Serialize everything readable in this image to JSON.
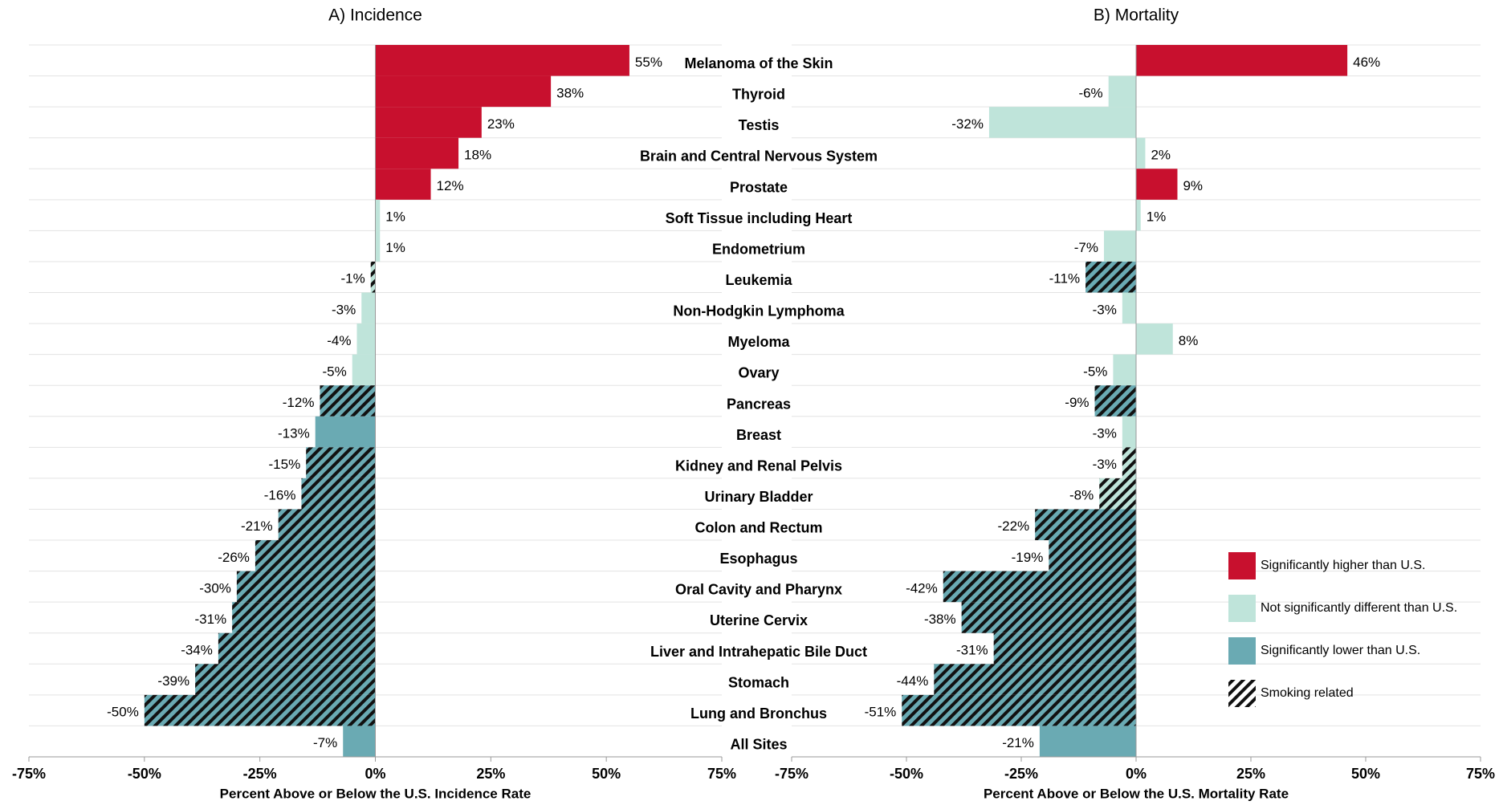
{
  "chart_data": {
    "type": "bar",
    "orientation": "horizontal",
    "categories": [
      "Melanoma of the Skin",
      "Thyroid",
      "Testis",
      "Brain and Central Nervous System",
      "Prostate",
      "Soft Tissue including Heart",
      "Endometrium",
      "Leukemia",
      "Non-Hodgkin Lymphoma",
      "Myeloma",
      "Ovary",
      "Pancreas",
      "Breast",
      "Kidney and Renal Pelvis",
      "Urinary Bladder",
      "Colon and Rectum",
      "Esophagus",
      "Oral Cavity and Pharynx",
      "Uterine Cervix",
      "Liver and Intrahepatic Bile Duct",
      "Stomach",
      "Lung and Bronchus",
      "All Sites"
    ],
    "legend": [
      {
        "name": "Significantly higher than U.S.",
        "color": "#c8102e"
      },
      {
        "name": "Not significantly different than U.S.",
        "color": "#bfe4da"
      },
      {
        "name": "Significantly lower than U.S.",
        "color": "#6aaab3"
      },
      {
        "name": "Smoking related",
        "pattern": "hatch"
      }
    ],
    "series": [
      {
        "name": "A) Incidence",
        "xlabel": "Percent Above or Below the U.S. Incidence Rate",
        "xlim": [
          -75,
          75
        ],
        "xticks": [
          {
            "value": -75,
            "label": "-75%"
          },
          {
            "value": -50,
            "label": "-50%"
          },
          {
            "value": -25,
            "label": "-25%"
          },
          {
            "value": 0,
            "label": "0%"
          },
          {
            "value": 25,
            "label": "25%"
          },
          {
            "value": 50,
            "label": "50%"
          },
          {
            "value": 75,
            "label": "75%"
          }
        ],
        "values": [
          55,
          38,
          23,
          18,
          12,
          1,
          1,
          -1,
          -3,
          -4,
          -5,
          -12,
          -13,
          -15,
          -16,
          -21,
          -26,
          -30,
          -31,
          -34,
          -39,
          -50,
          -7
        ],
        "value_labels": [
          "55%",
          "38%",
          "23%",
          "18%",
          "12%",
          "1%",
          "1%",
          "-1%",
          "-3%",
          "-4%",
          "-5%",
          "-12%",
          "-13%",
          "-15%",
          "-16%",
          "-21%",
          "-26%",
          "-30%",
          "-31%",
          "-34%",
          "-39%",
          "-50%",
          "-7%"
        ],
        "status": [
          0,
          0,
          0,
          0,
          0,
          1,
          1,
          1,
          1,
          1,
          1,
          2,
          2,
          2,
          2,
          2,
          2,
          2,
          2,
          2,
          2,
          2,
          2
        ],
        "smoking": [
          false,
          false,
          false,
          false,
          false,
          false,
          false,
          true,
          false,
          false,
          false,
          true,
          false,
          true,
          true,
          true,
          true,
          true,
          true,
          true,
          true,
          true,
          false
        ]
      },
      {
        "name": "B) Mortality",
        "xlabel": "Percent Above or Below the U.S. Mortality Rate",
        "xlim": [
          -75,
          75
        ],
        "xticks": [
          {
            "value": -75,
            "label": "-75%"
          },
          {
            "value": -50,
            "label": "-50%"
          },
          {
            "value": -25,
            "label": "-25%"
          },
          {
            "value": 0,
            "label": "0%"
          },
          {
            "value": 25,
            "label": "25%"
          },
          {
            "value": 50,
            "label": "50%"
          },
          {
            "value": 75,
            "label": "75%"
          }
        ],
        "values": [
          46,
          -6,
          -32,
          2,
          9,
          1,
          -7,
          -11,
          -3,
          8,
          -5,
          -9,
          -3,
          -3,
          -8,
          -22,
          -19,
          -42,
          -38,
          -31,
          -44,
          -51,
          -21
        ],
        "value_labels": [
          "46%",
          "-6%",
          "-32%",
          "2%",
          "9%",
          "1%",
          "-7%",
          "-11%",
          "-3%",
          "8%",
          "-5%",
          "-9%",
          "-3%",
          "-3%",
          "-8%",
          "-22%",
          "-19%",
          "-42%",
          "-38%",
          "-31%",
          "-44%",
          "-51%",
          "-21%"
        ],
        "status": [
          0,
          1,
          1,
          1,
          0,
          1,
          1,
          2,
          1,
          1,
          1,
          2,
          1,
          1,
          1,
          2,
          2,
          2,
          2,
          2,
          2,
          2,
          2
        ],
        "smoking": [
          false,
          false,
          false,
          false,
          false,
          false,
          false,
          true,
          false,
          false,
          false,
          true,
          false,
          true,
          true,
          true,
          true,
          true,
          true,
          true,
          true,
          true,
          false
        ]
      }
    ]
  }
}
